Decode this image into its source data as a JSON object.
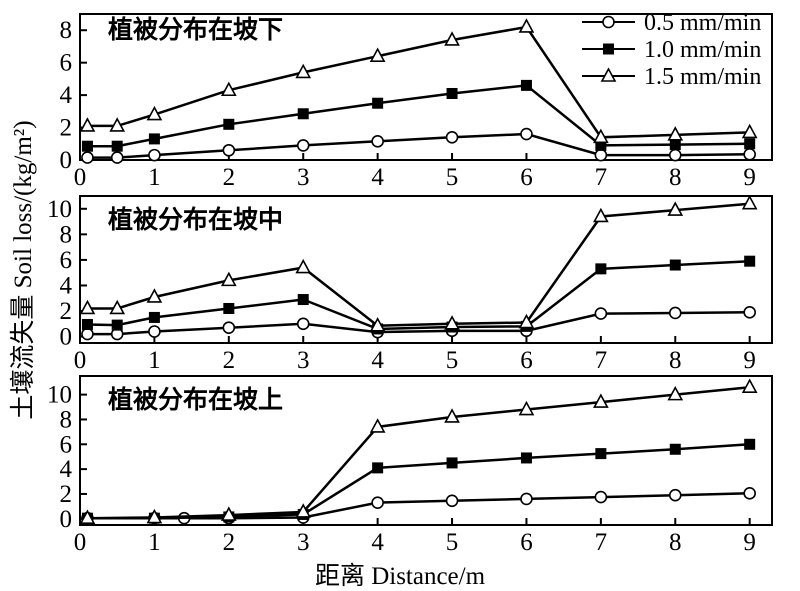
{
  "chart_data": {
    "type": "line",
    "ylabel": "土壤流失量 Soil loss/(kg/m²)",
    "xlabel": "距离 Distance/m",
    "x": [
      0.1,
      0.5,
      1,
      2,
      3,
      4,
      5,
      6,
      7,
      8,
      9
    ],
    "xlim": [
      0,
      9.3
    ],
    "xticks": [
      "0",
      "1",
      "2",
      "3",
      "4",
      "5",
      "6",
      "7",
      "8",
      "9"
    ],
    "legend": [
      {
        "name": "0.5 mm/min",
        "marker": "open-circle"
      },
      {
        "name": "1.0 mm/min",
        "marker": "filled-square"
      },
      {
        "name": "1.5 mm/min",
        "marker": "open-triangle"
      }
    ],
    "legend_position": "top-right",
    "grid": false,
    "panels": [
      {
        "title": "植被分布在坡下",
        "ylim": [
          0,
          9
        ],
        "yticks": [
          "0",
          "2",
          "4",
          "6",
          "8"
        ],
        "series": [
          {
            "name": "0.5 mm/min",
            "values": [
              0.15,
              0.15,
              0.3,
              0.6,
              0.9,
              1.15,
              1.4,
              1.6,
              0.3,
              0.3,
              0.35
            ]
          },
          {
            "name": "1.0 mm/min",
            "values": [
              0.85,
              0.85,
              1.3,
              2.2,
              2.85,
              3.5,
              4.1,
              4.6,
              0.9,
              0.95,
              1.0
            ]
          },
          {
            "name": "1.5 mm/min",
            "values": [
              2.1,
              2.1,
              2.8,
              4.3,
              5.4,
              6.4,
              7.4,
              8.2,
              1.4,
              1.55,
              1.7
            ]
          }
        ]
      },
      {
        "title": "植被分布在坡中",
        "ylim": [
          -0.5,
          11
        ],
        "yticks": [
          "0",
          "2",
          "4",
          "6",
          "8",
          "10"
        ],
        "series": [
          {
            "name": "0.5 mm/min",
            "values": [
              0.2,
              0.2,
              0.4,
              0.7,
              1.0,
              0.35,
              0.45,
              0.45,
              1.8,
              1.85,
              1.9
            ]
          },
          {
            "name": "1.0 mm/min",
            "values": [
              0.95,
              0.9,
              1.5,
              2.2,
              2.9,
              0.6,
              0.75,
              0.8,
              5.3,
              5.6,
              5.9
            ]
          },
          {
            "name": "1.5 mm/min",
            "values": [
              2.2,
              2.2,
              3.1,
              4.4,
              5.4,
              0.85,
              1.0,
              1.1,
              9.4,
              9.9,
              10.4
            ]
          }
        ]
      },
      {
        "title": "植被分布在坡上",
        "ylim": [
          -0.5,
          11.5
        ],
        "yticks": [
          "0",
          "2",
          "4",
          "6",
          "8",
          "10"
        ],
        "series": [
          {
            "name": "0.5 mm/min",
            "x": [
              0.1,
              1,
              1.4,
              2,
              3,
              4,
              5,
              6,
              7,
              8,
              9
            ],
            "values": [
              0.05,
              0.05,
              0.05,
              0.05,
              0.1,
              1.3,
              1.45,
              1.6,
              1.75,
              1.9,
              2.05
            ]
          },
          {
            "name": "1.0 mm/min",
            "x": [
              0.1,
              1,
              2,
              3,
              4,
              5,
              6,
              7,
              8,
              9
            ],
            "values": [
              0.05,
              0.05,
              0.15,
              0.35,
              4.1,
              4.5,
              4.9,
              5.25,
              5.6,
              6.0
            ]
          },
          {
            "name": "1.5 mm/min",
            "x": [
              0.1,
              1,
              2,
              3,
              4,
              5,
              6,
              7,
              8,
              9
            ],
            "values": [
              0.05,
              0.1,
              0.3,
              0.55,
              7.4,
              8.2,
              8.8,
              9.4,
              10.0,
              10.6
            ]
          }
        ]
      }
    ]
  }
}
